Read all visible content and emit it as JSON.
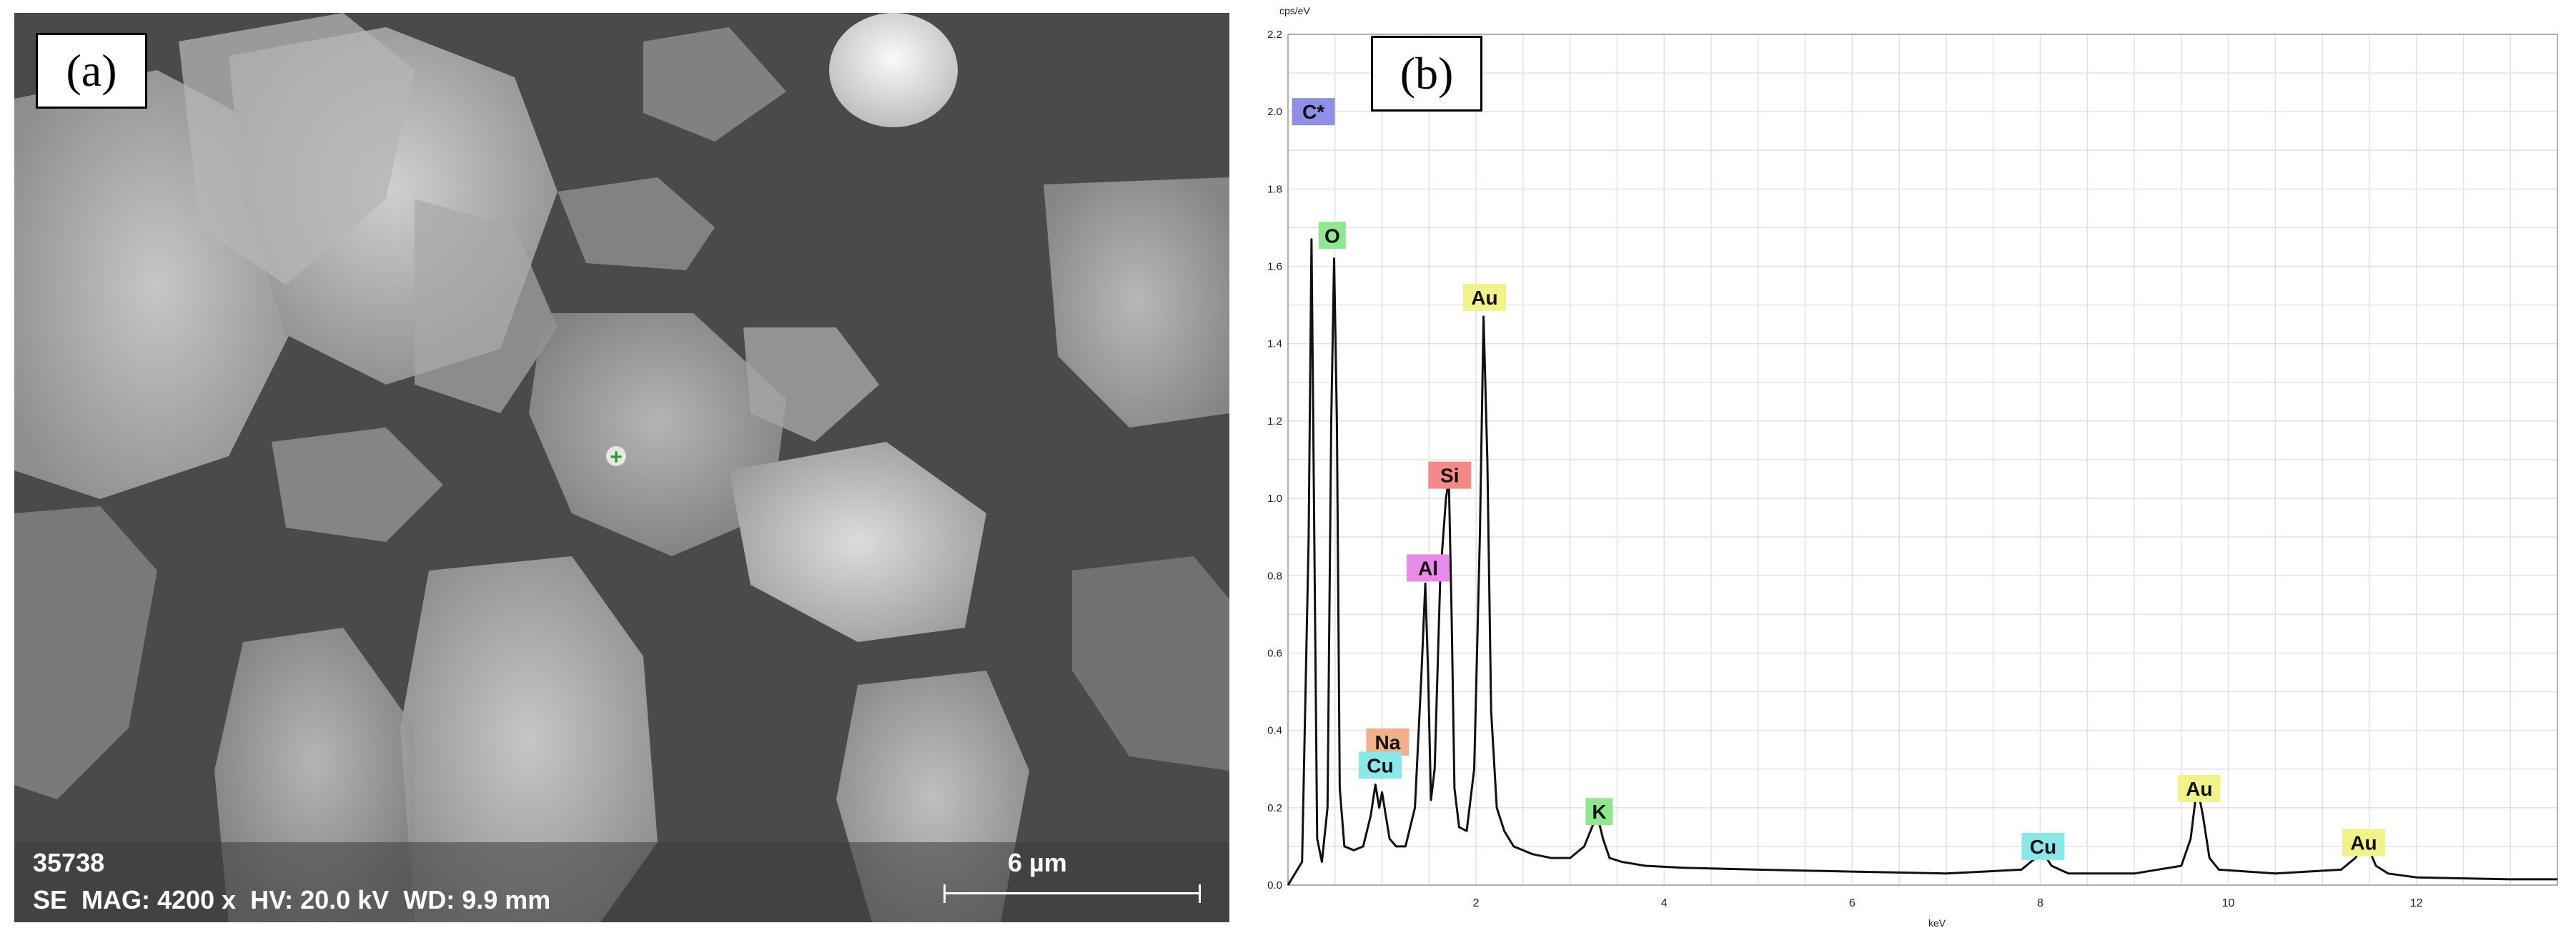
{
  "panels": {
    "a": {
      "label": "(a)",
      "image_id": "35738",
      "parameters": "SE  MAG: 4200 x  HV: 20.0 kV  WD: 9.9 mm",
      "scale_bar_label": "6 µm"
    },
    "b": {
      "label": "(b)"
    }
  },
  "chart_data": {
    "type": "line",
    "title": "",
    "xlabel": "keV",
    "ylabel": "cps/eV",
    "xlim": [
      0,
      13.5
    ],
    "ylim": [
      0,
      2.2
    ],
    "x_ticks": [
      2,
      4,
      6,
      8,
      10,
      12
    ],
    "x_tick_labels": [
      "2",
      "4",
      "6",
      "8",
      "10",
      "12"
    ],
    "y_ticks": [
      0.0,
      0.2,
      0.4,
      0.6,
      0.8,
      1.0,
      1.2,
      1.4,
      1.6,
      1.8,
      2.0,
      2.2
    ],
    "y_tick_labels": [
      "0.0",
      "0.2",
      "0.4",
      "0.6",
      "0.8",
      "1.0",
      "1.2",
      "1.4",
      "1.6",
      "1.8",
      "2.0",
      "2.2"
    ],
    "grid": true,
    "series": [
      {
        "x": [
          0.0,
          0.15,
          0.22,
          0.25,
          0.28,
          0.31,
          0.36,
          0.42,
          0.46,
          0.49,
          0.52,
          0.55,
          0.6,
          0.7,
          0.8,
          0.88,
          0.93,
          0.97,
          1.0,
          1.04,
          1.08,
          1.15,
          1.25,
          1.35,
          1.42,
          1.46,
          1.49,
          1.52,
          1.56,
          1.62,
          1.68,
          1.71,
          1.74,
          1.77,
          1.82,
          1.9,
          1.98,
          2.04,
          2.08,
          2.12,
          2.16,
          2.22,
          2.3,
          2.4,
          2.6,
          2.8,
          3.0,
          3.15,
          3.25,
          3.3,
          3.35,
          3.42,
          3.55,
          3.8,
          4.2,
          5.0,
          6.0,
          7.0,
          7.8,
          7.95,
          8.04,
          8.12,
          8.3,
          9.0,
          9.5,
          9.6,
          9.65,
          9.69,
          9.73,
          9.8,
          9.9,
          10.5,
          11.2,
          11.35,
          11.44,
          11.5,
          11.57,
          11.7,
          12.0,
          13.0,
          13.5
        ],
        "y": [
          0.0,
          0.06,
          0.9,
          1.67,
          0.9,
          0.12,
          0.06,
          0.2,
          1.2,
          1.62,
          1.2,
          0.25,
          0.1,
          0.09,
          0.1,
          0.18,
          0.26,
          0.2,
          0.24,
          0.18,
          0.12,
          0.1,
          0.1,
          0.2,
          0.55,
          0.78,
          0.55,
          0.22,
          0.3,
          0.8,
          1.0,
          1.05,
          0.7,
          0.25,
          0.15,
          0.14,
          0.3,
          0.9,
          1.47,
          1.1,
          0.45,
          0.2,
          0.14,
          0.1,
          0.08,
          0.07,
          0.07,
          0.1,
          0.16,
          0.17,
          0.12,
          0.07,
          0.06,
          0.05,
          0.045,
          0.04,
          0.035,
          0.03,
          0.04,
          0.07,
          0.08,
          0.05,
          0.03,
          0.03,
          0.05,
          0.12,
          0.22,
          0.23,
          0.18,
          0.07,
          0.04,
          0.03,
          0.04,
          0.07,
          0.1,
          0.09,
          0.05,
          0.03,
          0.02,
          0.015,
          0.015
        ]
      }
    ],
    "peak_labels": [
      {
        "text": "C*",
        "x": 0.27,
        "y": 2.0,
        "color": "#8f8fe8"
      },
      {
        "text": "O",
        "x": 0.47,
        "y": 1.68,
        "color": "#8fe88f"
      },
      {
        "text": "Au",
        "x": 2.09,
        "y": 1.52,
        "color": "#f2f28a"
      },
      {
        "text": "Si",
        "x": 1.72,
        "y": 1.06,
        "color": "#f28a8a"
      },
      {
        "text": "Al",
        "x": 1.49,
        "y": 0.82,
        "color": "#e88ae8"
      },
      {
        "text": "Na",
        "x": 1.06,
        "y": 0.37,
        "color": "#f2b08a"
      },
      {
        "text": "Cu",
        "x": 0.98,
        "y": 0.31,
        "color": "#8ae8e8"
      },
      {
        "text": "K",
        "x": 3.31,
        "y": 0.19,
        "color": "#8fe88f"
      },
      {
        "text": "Cu",
        "x": 8.03,
        "y": 0.1,
        "color": "#8ae8e8"
      },
      {
        "text": "Au",
        "x": 9.69,
        "y": 0.25,
        "color": "#f2f28a"
      },
      {
        "text": "Au",
        "x": 11.44,
        "y": 0.11,
        "color": "#f2f28a"
      }
    ]
  }
}
